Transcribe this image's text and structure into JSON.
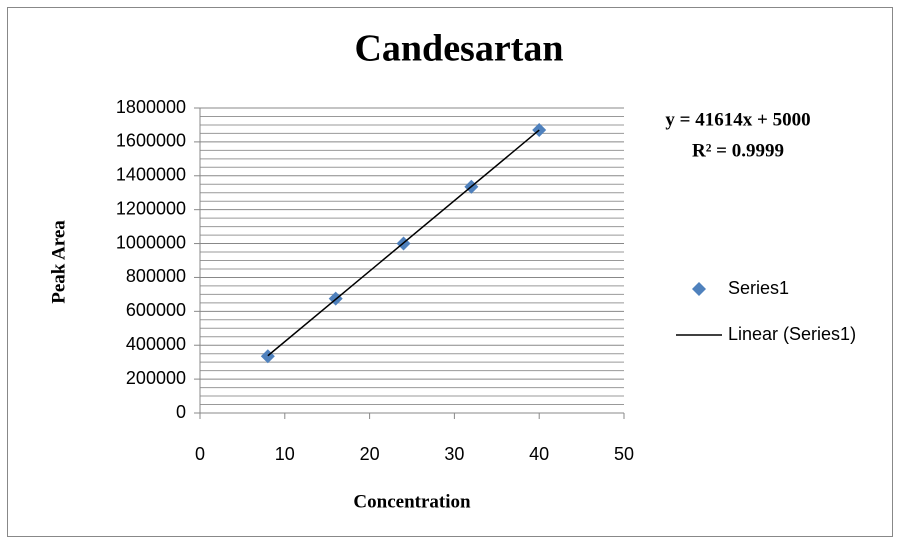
{
  "chart_data": {
    "type": "scatter",
    "title": "Candesartan",
    "x_label": "Concentration",
    "y_label": "Peak Area",
    "series": [
      {
        "name": "Series1",
        "color": "#4f81bd",
        "x": [
          8,
          16,
          24,
          32,
          40
        ],
        "values": [
          335000,
          675000,
          1000000,
          1335000,
          1670000
        ]
      },
      {
        "name": "Linear (Series1)",
        "color": "#000000",
        "x": [
          8,
          40
        ],
        "values": [
          337912,
          1669560
        ],
        "line": true
      }
    ],
    "annotations": [
      "y = 41614x + 5000",
      "R² = 0.9999"
    ],
    "xlim": [
      0,
      50
    ],
    "xticks": [
      0,
      10,
      20,
      30,
      40,
      50
    ],
    "ylim": [
      0,
      1800000
    ],
    "yticks": [
      0,
      200000,
      400000,
      600000,
      800000,
      1000000,
      1200000,
      1400000,
      1600000,
      1800000
    ],
    "grid": true,
    "minor_grid_per_major": 4,
    "legend": "right"
  }
}
